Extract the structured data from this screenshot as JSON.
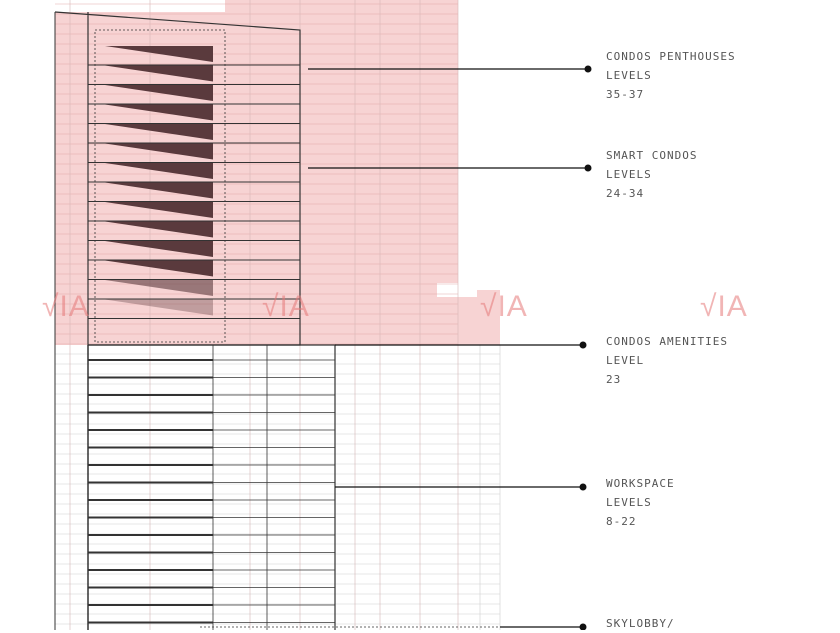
{
  "colors": {
    "pink": "#f7d3d3",
    "line": "#333333",
    "triangle": "#5a3a3d",
    "watermark": "#e88a8a"
  },
  "watermark": "VIA",
  "labels": [
    {
      "title": "CONDOS PENTHOUSES",
      "sub": "LEVELS",
      "range": "35-37"
    },
    {
      "title": "SMART CONDOS",
      "sub": "LEVELS",
      "range": "24-34"
    },
    {
      "title": "CONDOS AMENITIES",
      "sub": "LEVEL",
      "range": "23"
    },
    {
      "title": "WORKSPACE",
      "sub": "LEVELS",
      "range": "8-22"
    },
    {
      "title": "SKYLOBBY/",
      "sub": "",
      "range": ""
    }
  ]
}
